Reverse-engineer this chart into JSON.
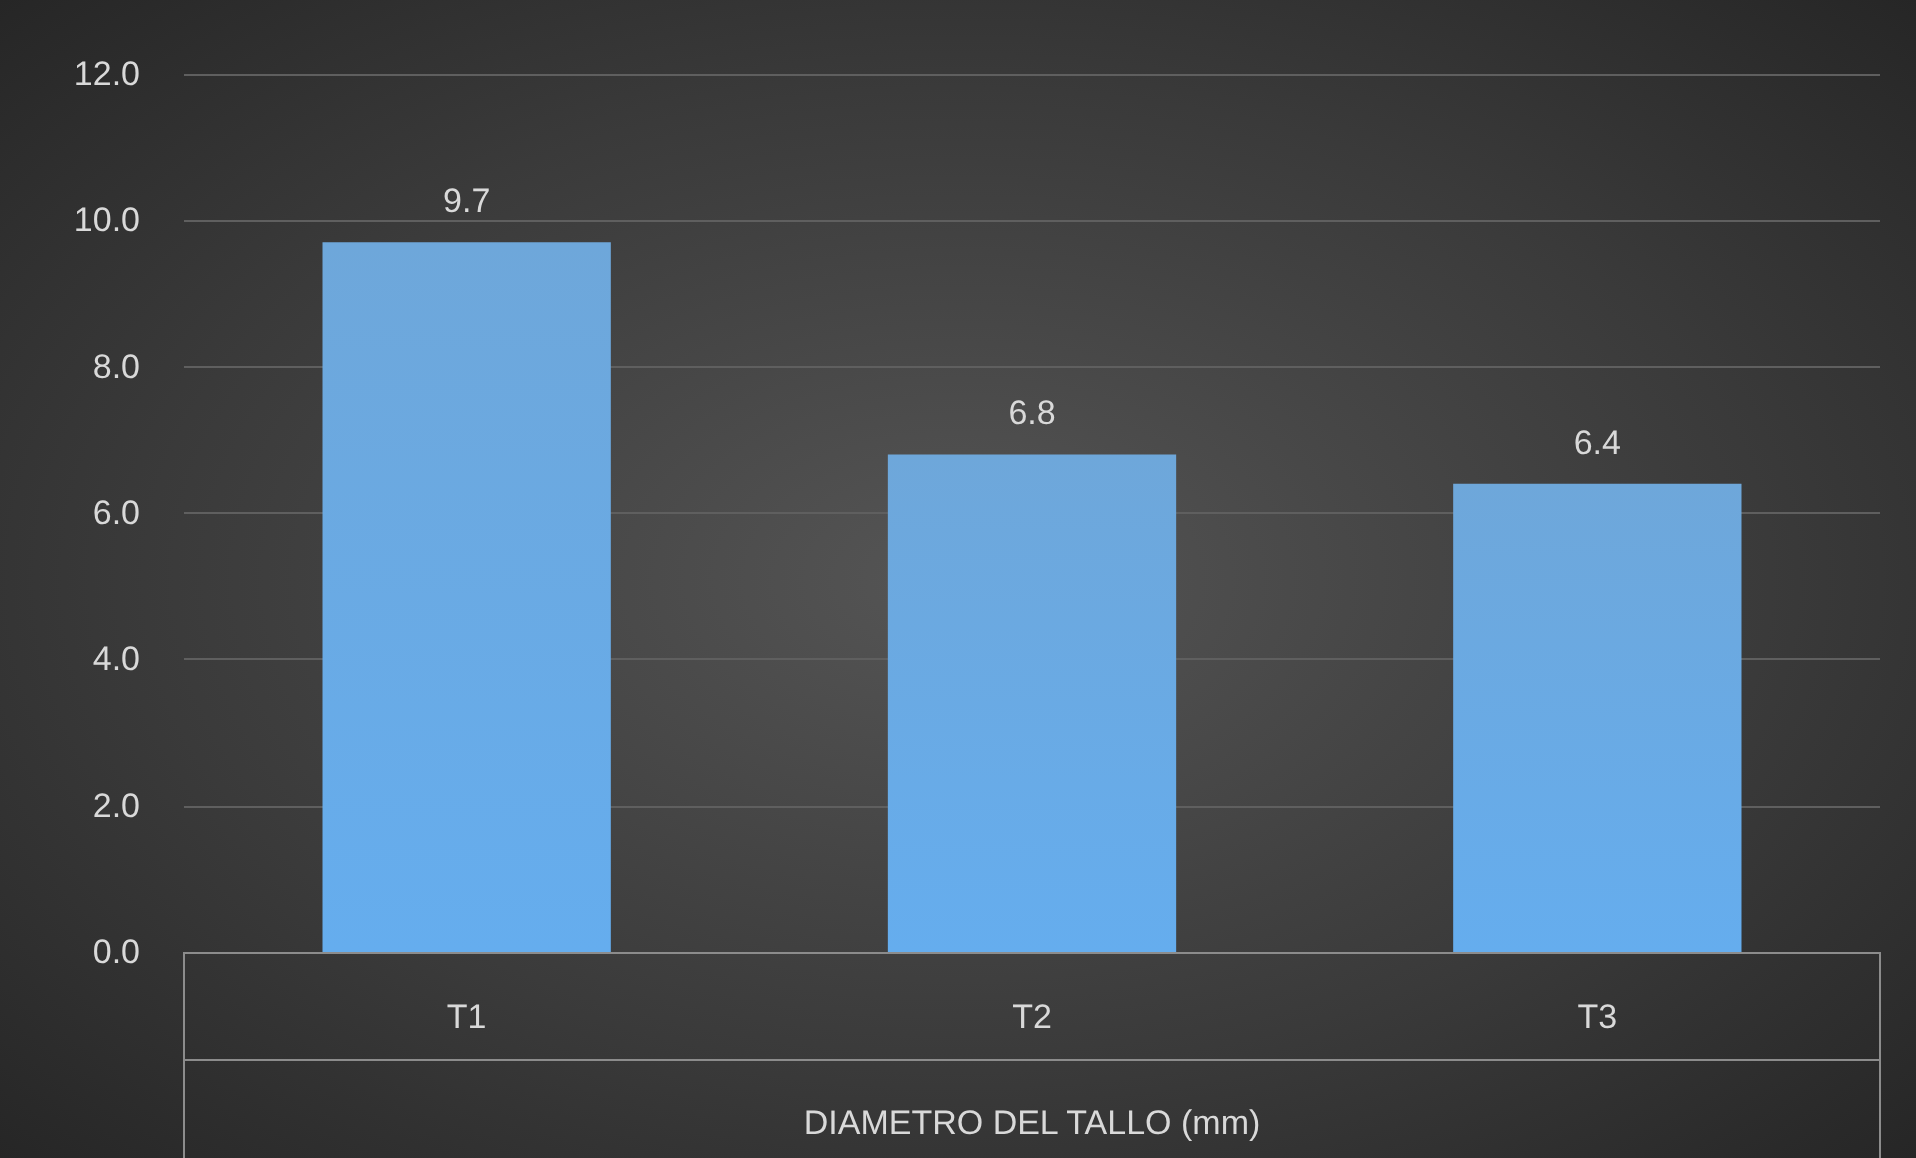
{
  "chart_data": {
    "type": "bar",
    "xlabel": "DIAMETRO DEL TALLO (mm)",
    "categories": [
      "T1",
      "T2",
      "T3"
    ],
    "values": [
      9.7,
      6.8,
      6.4
    ],
    "color": "#5b9bd5",
    "ylim": [
      0,
      12
    ],
    "yticks": [
      {
        "value": 0,
        "label": "0.0"
      },
      {
        "value": 2,
        "label": "2.0"
      },
      {
        "value": 4,
        "label": "4.0"
      },
      {
        "value": 6,
        "label": "6.0"
      },
      {
        "value": 8,
        "label": "8.0"
      },
      {
        "value": 10,
        "label": "10.0"
      },
      {
        "value": 12,
        "label": "12.0"
      }
    ],
    "grid": "y",
    "data_labels": true
  }
}
